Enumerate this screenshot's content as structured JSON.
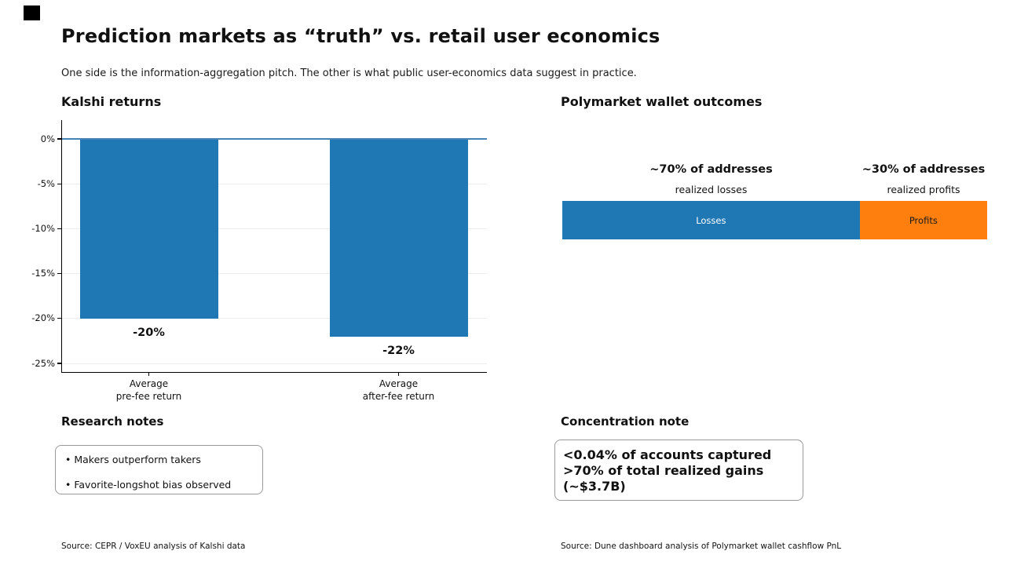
{
  "header": {
    "title": "Prediction markets as “truth” vs. retail user economics",
    "subtitle": "One side is the information-aggregation pitch. The other is what public user-economics data suggest in practice."
  },
  "kalshi_panel": {
    "heading": "Kalshi returns",
    "source": "Source: CEPR / VoxEU analysis of Kalshi data"
  },
  "polymarket_panel": {
    "heading": "Polymarket wallet outcomes",
    "source": "Source: Dune dashboard analysis of Polymarket wallet cashflow PnL",
    "annotations": [
      {
        "line1": "~70% of addresses",
        "line2": "realized losses"
      },
      {
        "line1": "~30% of addresses",
        "line2": "realized profits"
      }
    ]
  },
  "research_notes": {
    "heading": "Research notes",
    "items": [
      "• Makers outperform takers",
      "• Favorite-longshot bias observed"
    ]
  },
  "concentration_note": {
    "heading": "Concentration note",
    "lines": [
      "<0.04% of accounts captured",
      ">70% of total realized gains",
      "(~$3.7B)"
    ]
  },
  "colors": {
    "bar_blue": "#1f77b4",
    "bar_orange": "#ff7f0e",
    "zero_line": "#4682b4",
    "grid_line": "#ececec",
    "axis": "#000000"
  },
  "chart_data": [
    {
      "type": "bar",
      "orientation": "vertical",
      "title": "Kalshi returns",
      "categories": [
        "Average\npre-fee return",
        "Average\nafter-fee return"
      ],
      "values": [
        -20,
        -22
      ],
      "data_labels": [
        "-20%",
        "-22%"
      ],
      "unit": "percent return",
      "ylim": [
        -26.2,
        2.1
      ],
      "yticks": [
        0,
        -5,
        -10,
        -15,
        -20,
        -25
      ],
      "ytick_labels": [
        "0%",
        "-5%",
        "-10%",
        "-15%",
        "-20%",
        "-25%"
      ],
      "grid": true,
      "zero_line": true,
      "bar_color": "#1f77b4",
      "legend": "none"
    },
    {
      "type": "bar",
      "orientation": "horizontal-stacked",
      "title": "Polymarket wallet outcomes",
      "unit": "% of addresses",
      "segments": [
        {
          "label": "Losses",
          "value": 70,
          "color": "#1f77b4",
          "text_color": "#ffffff",
          "annotation": "~70% of addresses realized losses"
        },
        {
          "label": "Profits",
          "value": 30,
          "color": "#ff7f0e",
          "text_color": "#1a1a1a",
          "annotation": "~30% of addresses realized profits"
        }
      ],
      "legend": "none"
    }
  ]
}
